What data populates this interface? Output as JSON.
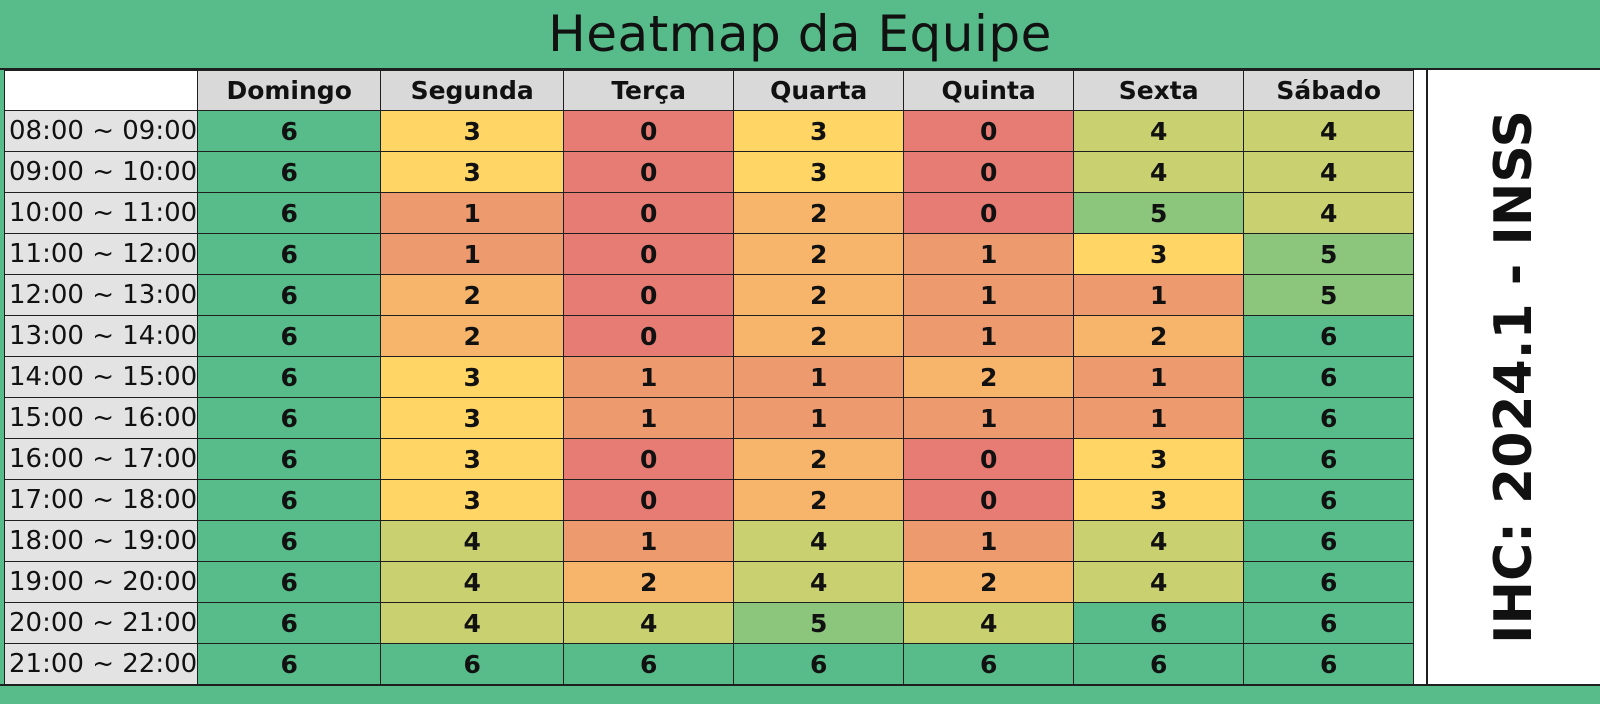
{
  "title": "Heatmap da Equipe",
  "side_label": "IHC: 2024.1 - INSS",
  "colors": {
    "header_bg": "#57bb8a",
    "0": "#e67c73",
    "1": "#ee9a6f",
    "2": "#f6b56b",
    "3": "#ffd666",
    "4": "#c9d06f",
    "5": "#8cc57c",
    "6": "#57bb8a"
  },
  "chart_data": {
    "type": "heatmap",
    "title": "Heatmap da Equipe",
    "columns": [
      "Domingo",
      "Segunda",
      "Terça",
      "Quarta",
      "Quinta",
      "Sexta",
      "Sábado"
    ],
    "rows": [
      "08:00 ~ 09:00",
      "09:00 ~ 10:00",
      "10:00 ~ 11:00",
      "11:00 ~ 12:00",
      "12:00 ~ 13:00",
      "13:00 ~ 14:00",
      "14:00 ~ 15:00",
      "15:00 ~ 16:00",
      "16:00 ~ 17:00",
      "17:00 ~ 18:00",
      "18:00 ~ 19:00",
      "19:00 ~ 20:00",
      "20:00 ~ 21:00",
      "21:00 ~ 22:00"
    ],
    "values": [
      [
        6,
        3,
        0,
        3,
        0,
        4,
        4
      ],
      [
        6,
        3,
        0,
        3,
        0,
        4,
        4
      ],
      [
        6,
        1,
        0,
        2,
        0,
        5,
        4
      ],
      [
        6,
        1,
        0,
        2,
        1,
        3,
        5
      ],
      [
        6,
        2,
        0,
        2,
        1,
        1,
        5
      ],
      [
        6,
        2,
        0,
        2,
        1,
        2,
        6
      ],
      [
        6,
        3,
        1,
        1,
        2,
        1,
        6
      ],
      [
        6,
        3,
        1,
        1,
        1,
        1,
        6
      ],
      [
        6,
        3,
        0,
        2,
        0,
        3,
        6
      ],
      [
        6,
        3,
        0,
        2,
        0,
        3,
        6
      ],
      [
        6,
        4,
        1,
        4,
        1,
        4,
        6
      ],
      [
        6,
        4,
        2,
        4,
        2,
        4,
        6
      ],
      [
        6,
        4,
        4,
        5,
        4,
        6,
        6
      ],
      [
        6,
        6,
        6,
        6,
        6,
        6,
        6
      ]
    ],
    "scale": [
      0,
      6
    ]
  }
}
